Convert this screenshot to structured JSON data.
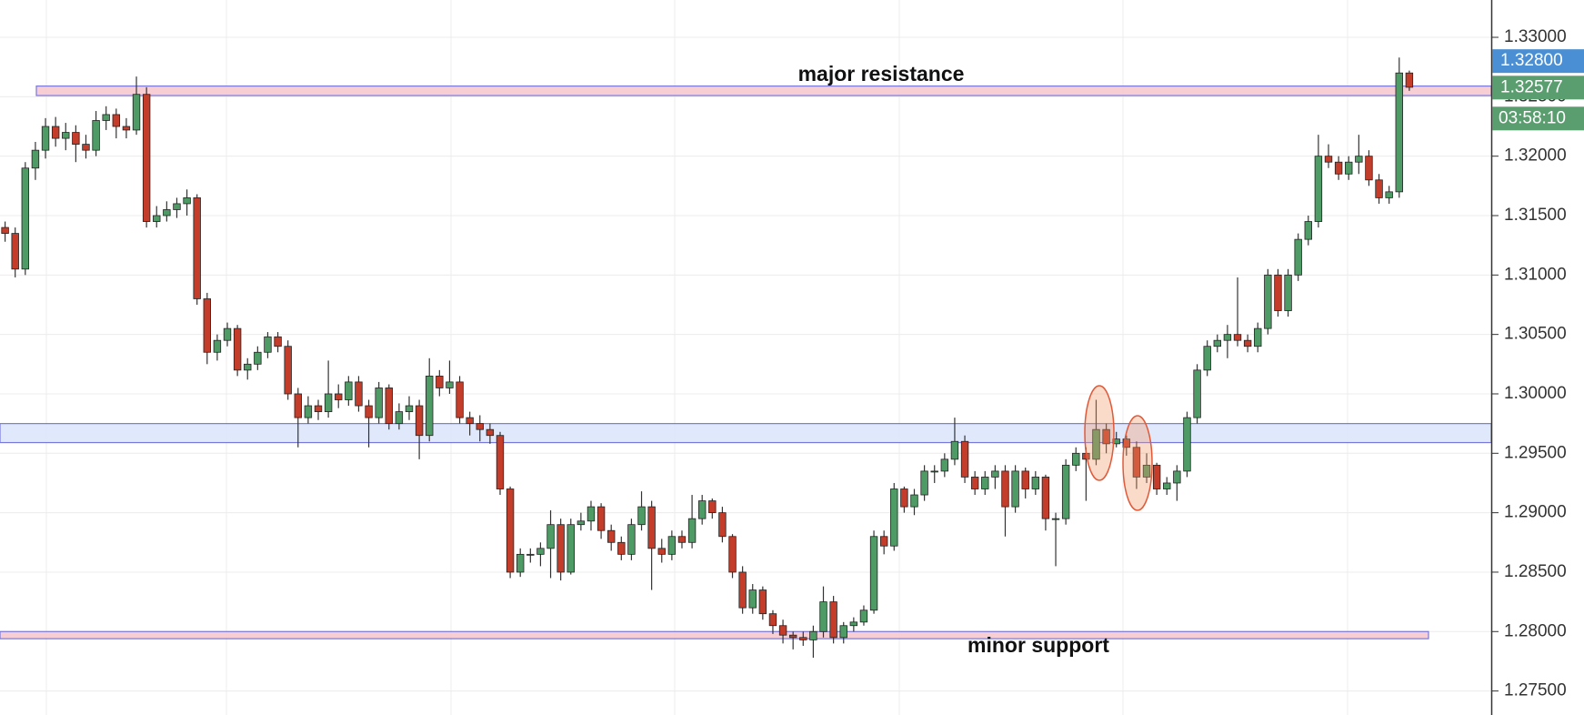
{
  "chart_data": {
    "type": "candlestick",
    "ylim": [
      1.27298,
      1.33314
    ],
    "yticks": [
      {
        "value": 1.275,
        "label": "1.27500"
      },
      {
        "value": 1.28,
        "label": "1.28000"
      },
      {
        "value": 1.285,
        "label": "1.28500"
      },
      {
        "value": 1.29,
        "label": "1.29000"
      },
      {
        "value": 1.295,
        "label": "1.29500"
      },
      {
        "value": 1.3,
        "label": "1.30000"
      },
      {
        "value": 1.305,
        "label": "1.30500"
      },
      {
        "value": 1.31,
        "label": "1.31000"
      },
      {
        "value": 1.315,
        "label": "1.31500"
      },
      {
        "value": 1.32,
        "label": "1.32000"
      },
      {
        "value": 1.325,
        "label": "1.32500"
      },
      {
        "value": 1.33,
        "label": "1.33000"
      }
    ],
    "grid": true,
    "up_color": "#4f9b66",
    "down_color": "#c33d2a",
    "zones": [
      {
        "range": [
          1.3251,
          1.3259
        ],
        "color": "#f6c9cf"
      },
      {
        "range": [
          1.2959,
          1.2975
        ],
        "color": "#dde7fb"
      },
      {
        "range": [
          1.2794,
          1.28
        ],
        "color": "#f6c9cf"
      }
    ],
    "annotations": [
      {
        "text": "major resistance"
      },
      {
        "text": "minor support"
      }
    ],
    "price_tags": [
      {
        "value": 1.328,
        "label": "1.32800",
        "color": "#4a8fd4"
      },
      {
        "value": 1.32577,
        "label": "1.32577",
        "color": "#5a9e6f"
      }
    ],
    "countdown": "03:58:10",
    "ohlc": [
      [
        1.314,
        1.3145,
        1.3128,
        1.3135
      ],
      [
        1.3135,
        1.314,
        1.3098,
        1.3105
      ],
      [
        1.3105,
        1.3195,
        1.31,
        1.319
      ],
      [
        1.319,
        1.3212,
        1.318,
        1.3205
      ],
      [
        1.3205,
        1.3232,
        1.3198,
        1.3225
      ],
      [
        1.3225,
        1.3233,
        1.3208,
        1.3215
      ],
      [
        1.3215,
        1.3228,
        1.3205,
        1.322
      ],
      [
        1.322,
        1.3226,
        1.3195,
        1.321
      ],
      [
        1.321,
        1.3218,
        1.3198,
        1.3205
      ],
      [
        1.3205,
        1.3238,
        1.32,
        1.323
      ],
      [
        1.323,
        1.3242,
        1.3222,
        1.3235
      ],
      [
        1.3235,
        1.324,
        1.3215,
        1.3225
      ],
      [
        1.3225,
        1.3232,
        1.3215,
        1.3222
      ],
      [
        1.3222,
        1.3267,
        1.3218,
        1.3252
      ],
      [
        1.3252,
        1.3258,
        1.314,
        1.3145
      ],
      [
        1.3145,
        1.3158,
        1.314,
        1.315
      ],
      [
        1.315,
        1.3162,
        1.3145,
        1.3155
      ],
      [
        1.3155,
        1.3165,
        1.3148,
        1.316
      ],
      [
        1.316,
        1.3172,
        1.315,
        1.3165
      ],
      [
        1.3165,
        1.3168,
        1.3075,
        1.308
      ],
      [
        1.308,
        1.3085,
        1.3025,
        1.3035
      ],
      [
        1.3035,
        1.305,
        1.3028,
        1.3045
      ],
      [
        1.3045,
        1.306,
        1.304,
        1.3055
      ],
      [
        1.3055,
        1.3058,
        1.3015,
        1.302
      ],
      [
        1.302,
        1.303,
        1.3012,
        1.3025
      ],
      [
        1.3025,
        1.304,
        1.302,
        1.3035
      ],
      [
        1.3035,
        1.3052,
        1.303,
        1.3048
      ],
      [
        1.3048,
        1.3052,
        1.3035,
        1.304
      ],
      [
        1.304,
        1.3045,
        1.2995,
        1.3
      ],
      [
        1.3,
        1.3005,
        1.2955,
        1.298
      ],
      [
        1.298,
        1.2998,
        1.2975,
        1.299
      ],
      [
        1.299,
        1.2995,
        1.2978,
        1.2985
      ],
      [
        1.2985,
        1.3028,
        1.298,
        1.3
      ],
      [
        1.3,
        1.3008,
        1.2988,
        1.2995
      ],
      [
        1.2995,
        1.3015,
        1.299,
        1.301
      ],
      [
        1.301,
        1.3015,
        1.2985,
        1.299
      ],
      [
        1.299,
        1.2995,
        1.2955,
        1.298
      ],
      [
        1.298,
        1.301,
        1.2975,
        1.3005
      ],
      [
        1.3005,
        1.3008,
        1.297,
        1.2975
      ],
      [
        1.2975,
        1.2992,
        1.297,
        1.2985
      ],
      [
        1.2985,
        1.2998,
        1.2978,
        1.299
      ],
      [
        1.299,
        1.2995,
        1.2945,
        1.2965
      ],
      [
        1.2965,
        1.303,
        1.296,
        1.3015
      ],
      [
        1.3015,
        1.302,
        1.2998,
        1.3005
      ],
      [
        1.3005,
        1.3028,
        1.3,
        1.301
      ],
      [
        1.301,
        1.3015,
        1.2975,
        1.298
      ],
      [
        1.298,
        1.2985,
        1.2965,
        1.2975
      ],
      [
        1.2975,
        1.2982,
        1.296,
        1.297
      ],
      [
        1.297,
        1.2975,
        1.2958,
        1.2965
      ],
      [
        1.2965,
        1.2968,
        1.2915,
        1.292
      ],
      [
        1.292,
        1.2922,
        1.2845,
        1.285
      ],
      [
        1.285,
        1.287,
        1.2846,
        1.2865
      ],
      [
        1.2865,
        1.287,
        1.2858,
        1.2865
      ],
      [
        1.2865,
        1.2875,
        1.2855,
        1.287
      ],
      [
        1.287,
        1.2902,
        1.2845,
        1.289
      ],
      [
        1.289,
        1.2895,
        1.2843,
        1.285
      ],
      [
        1.285,
        1.2895,
        1.2848,
        1.289
      ],
      [
        1.289,
        1.29,
        1.2885,
        1.2893
      ],
      [
        1.2893,
        1.291,
        1.2885,
        1.2905
      ],
      [
        1.2905,
        1.2908,
        1.2878,
        1.2885
      ],
      [
        1.2885,
        1.289,
        1.2868,
        1.2875
      ],
      [
        1.2875,
        1.288,
        1.286,
        1.2865
      ],
      [
        1.2865,
        1.2895,
        1.286,
        1.289
      ],
      [
        1.289,
        1.2918,
        1.2885,
        1.2905
      ],
      [
        1.2905,
        1.291,
        1.2835,
        1.287
      ],
      [
        1.287,
        1.2878,
        1.2858,
        1.2865
      ],
      [
        1.2865,
        1.2885,
        1.286,
        1.288
      ],
      [
        1.288,
        1.2885,
        1.287,
        1.2875
      ],
      [
        1.2875,
        1.2915,
        1.287,
        1.2895
      ],
      [
        1.2895,
        1.2915,
        1.289,
        1.291
      ],
      [
        1.291,
        1.2912,
        1.2895,
        1.29
      ],
      [
        1.29,
        1.2905,
        1.2875,
        1.288
      ],
      [
        1.288,
        1.2882,
        1.2845,
        1.285
      ],
      [
        1.285,
        1.2855,
        1.2815,
        1.282
      ],
      [
        1.282,
        1.284,
        1.2815,
        1.2835
      ],
      [
        1.2835,
        1.2838,
        1.281,
        1.2815
      ],
      [
        1.2815,
        1.2818,
        1.2798,
        1.2805
      ],
      [
        1.2805,
        1.281,
        1.279,
        1.2797
      ],
      [
        1.2797,
        1.28,
        1.2785,
        1.2795
      ],
      [
        1.2795,
        1.28,
        1.2788,
        1.2793
      ],
      [
        1.2793,
        1.2805,
        1.2778,
        1.28
      ],
      [
        1.28,
        1.2838,
        1.2795,
        1.2825
      ],
      [
        1.2825,
        1.283,
        1.279,
        1.2795
      ],
      [
        1.2795,
        1.2808,
        1.279,
        1.2805
      ],
      [
        1.2805,
        1.2812,
        1.28,
        1.2808
      ],
      [
        1.2808,
        1.2822,
        1.2805,
        1.2818
      ],
      [
        1.2818,
        1.2885,
        1.2815,
        1.288
      ],
      [
        1.288,
        1.2885,
        1.2865,
        1.2872
      ],
      [
        1.2872,
        1.2925,
        1.2868,
        1.292
      ],
      [
        1.292,
        1.2922,
        1.29,
        1.2905
      ],
      [
        1.2905,
        1.292,
        1.2898,
        1.2915
      ],
      [
        1.2915,
        1.294,
        1.291,
        1.2935
      ],
      [
        1.2935,
        1.294,
        1.2925,
        1.2935
      ],
      [
        1.2935,
        1.295,
        1.293,
        1.2945
      ],
      [
        1.2945,
        1.298,
        1.294,
        1.296
      ],
      [
        1.296,
        1.2965,
        1.2925,
        1.293
      ],
      [
        1.293,
        1.2935,
        1.2915,
        1.292
      ],
      [
        1.292,
        1.2935,
        1.2915,
        1.293
      ],
      [
        1.293,
        1.294,
        1.292,
        1.2935
      ],
      [
        1.2935,
        1.294,
        1.288,
        1.2905
      ],
      [
        1.2905,
        1.294,
        1.29,
        1.2935
      ],
      [
        1.2935,
        1.2938,
        1.2912,
        1.292
      ],
      [
        1.292,
        1.2935,
        1.2915,
        1.293
      ],
      [
        1.293,
        1.2932,
        1.2885,
        1.2895
      ],
      [
        1.2895,
        1.29,
        1.2855,
        1.2895
      ],
      [
        1.2895,
        1.2945,
        1.289,
        1.294
      ],
      [
        1.294,
        1.2955,
        1.2935,
        1.295
      ],
      [
        1.295,
        1.2955,
        1.291,
        1.2945
      ],
      [
        1.2945,
        1.2995,
        1.294,
        1.297
      ],
      [
        1.297,
        1.2975,
        1.295,
        1.2958
      ],
      [
        1.2958,
        1.2968,
        1.2955,
        1.2962
      ],
      [
        1.2962,
        1.2965,
        1.2948,
        1.2955
      ],
      [
        1.2955,
        1.296,
        1.292,
        1.293
      ],
      [
        1.293,
        1.295,
        1.2925,
        1.294
      ],
      [
        1.294,
        1.2942,
        1.2915,
        1.292
      ],
      [
        1.292,
        1.293,
        1.2915,
        1.2925
      ],
      [
        1.2925,
        1.294,
        1.291,
        1.2935
      ],
      [
        1.2935,
        1.2985,
        1.293,
        1.298
      ],
      [
        1.298,
        1.3025,
        1.2975,
        1.302
      ],
      [
        1.302,
        1.3045,
        1.3015,
        1.304
      ],
      [
        1.304,
        1.305,
        1.3035,
        1.3045
      ],
      [
        1.3045,
        1.3058,
        1.303,
        1.305
      ],
      [
        1.305,
        1.3098,
        1.304,
        1.3045
      ],
      [
        1.3045,
        1.305,
        1.3035,
        1.304
      ],
      [
        1.304,
        1.306,
        1.3035,
        1.3055
      ],
      [
        1.3055,
        1.3105,
        1.305,
        1.31
      ],
      [
        1.31,
        1.3105,
        1.3065,
        1.307
      ],
      [
        1.307,
        1.3105,
        1.3065,
        1.31
      ],
      [
        1.31,
        1.3135,
        1.3095,
        1.313
      ],
      [
        1.313,
        1.315,
        1.3125,
        1.3145
      ],
      [
        1.3145,
        1.3218,
        1.314,
        1.32
      ],
      [
        1.32,
        1.321,
        1.319,
        1.3195
      ],
      [
        1.3195,
        1.32,
        1.318,
        1.3185
      ],
      [
        1.3185,
        1.32,
        1.318,
        1.3195
      ],
      [
        1.3195,
        1.3218,
        1.3185,
        1.32
      ],
      [
        1.32,
        1.3205,
        1.3175,
        1.318
      ],
      [
        1.318,
        1.3185,
        1.316,
        1.3165
      ],
      [
        1.3165,
        1.3175,
        1.316,
        1.317
      ],
      [
        1.317,
        1.3283,
        1.3165,
        1.327
      ],
      [
        1.327,
        1.3272,
        1.3255,
        1.3258
      ]
    ]
  }
}
